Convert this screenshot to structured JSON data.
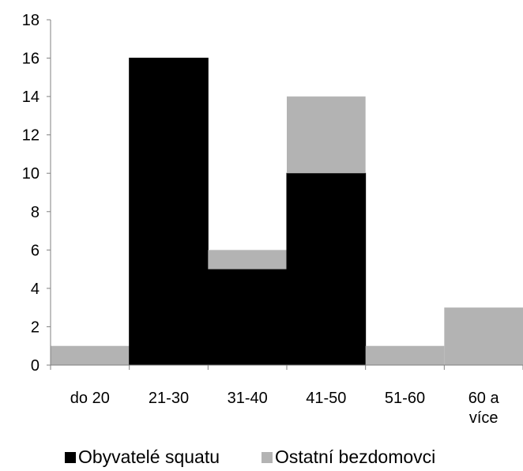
{
  "chart_data": {
    "type": "bar",
    "stacked": true,
    "categories": [
      "do 20",
      "21-30",
      "31-40",
      "41-50",
      "51-60",
      "60 a\nvíce"
    ],
    "series": [
      {
        "name": "Obyvatelé squatu",
        "values": [
          0,
          16,
          5,
          10,
          0,
          0
        ],
        "color": "#000000"
      },
      {
        "name": "Ostatní bezdomovci",
        "values": [
          1,
          0,
          1,
          4,
          1,
          3
        ],
        "color": "#b3b3b3"
      }
    ],
    "ylim": [
      0,
      18
    ],
    "yticks": [
      0,
      2,
      4,
      6,
      8,
      10,
      12,
      14,
      16,
      18
    ],
    "grid": false,
    "legend_position": "bottom",
    "title": "",
    "xlabel": "",
    "ylabel": ""
  }
}
